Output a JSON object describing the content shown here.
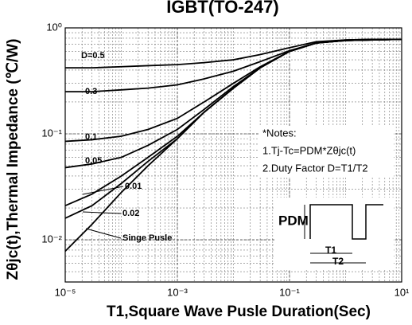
{
  "chart_data": {
    "type": "line",
    "title": "IGBT(TO-247)",
    "x_label": "T1,Square Wave Pusle Duration(Sec)",
    "y_label": "Zθjc(t),Thermal Impedance (℃/W)",
    "log_x": true,
    "log_y": true,
    "grid": true,
    "xlim": [
      1e-05,
      10
    ],
    "ylim": [
      0.004,
      1
    ],
    "xticks": [
      {
        "value": 1e-05,
        "label": "10⁻⁵"
      },
      {
        "value": 0.001,
        "label": "10⁻³"
      },
      {
        "value": 0.1,
        "label": "10⁻¹"
      },
      {
        "value": 10,
        "label": "10¹"
      }
    ],
    "yticks": [
      {
        "value": 0.01,
        "label": "10⁻²"
      },
      {
        "value": 0.1,
        "label": "10⁻¹"
      },
      {
        "value": 1,
        "label": "10⁰"
      }
    ],
    "x": [
      1e-05,
      3e-05,
      0.0001,
      0.0003,
      0.001,
      0.003,
      0.01,
      0.03,
      0.1,
      0.3,
      1,
      3,
      10
    ],
    "series": [
      {
        "name": "D=0.5",
        "color": "#000000",
        "values": [
          0.42,
          0.42,
          0.43,
          0.44,
          0.45,
          0.47,
          0.5,
          0.56,
          0.65,
          0.74,
          0.77,
          0.78,
          0.78
        ]
      },
      {
        "name": "0.3",
        "color": "#000000",
        "values": [
          0.25,
          0.25,
          0.26,
          0.27,
          0.29,
          0.33,
          0.39,
          0.48,
          0.61,
          0.72,
          0.77,
          0.78,
          0.78
        ]
      },
      {
        "name": "0.1",
        "color": "#000000",
        "values": [
          0.085,
          0.088,
          0.095,
          0.11,
          0.14,
          0.2,
          0.3,
          0.43,
          0.6,
          0.72,
          0.76,
          0.77,
          0.78
        ]
      },
      {
        "name": "0.05",
        "color": "#000000",
        "values": [
          0.048,
          0.052,
          0.06,
          0.078,
          0.11,
          0.17,
          0.28,
          0.42,
          0.6,
          0.72,
          0.76,
          0.77,
          0.78
        ]
      },
      {
        "name": "0.01",
        "color": "#000000",
        "values": [
          0.021,
          0.027,
          0.04,
          0.06,
          0.095,
          0.16,
          0.27,
          0.42,
          0.6,
          0.72,
          0.76,
          0.77,
          0.78
        ]
      },
      {
        "name": "0.02",
        "color": "#000000",
        "values": [
          0.016,
          0.021,
          0.034,
          0.055,
          0.09,
          0.16,
          0.27,
          0.42,
          0.6,
          0.72,
          0.76,
          0.77,
          0.78
        ]
      },
      {
        "name": "Singe Pusle",
        "color": "#000000",
        "values": [
          0.0078,
          0.014,
          0.028,
          0.05,
          0.09,
          0.16,
          0.27,
          0.42,
          0.6,
          0.72,
          0.76,
          0.77,
          0.78
        ]
      }
    ],
    "annotations": [
      "*Notes:",
      "1.Tj-Tc=PDM*Zθjc(t)",
      "2.Duty Factor D=T1/T2",
      "PDM",
      "T1",
      "T2"
    ]
  }
}
